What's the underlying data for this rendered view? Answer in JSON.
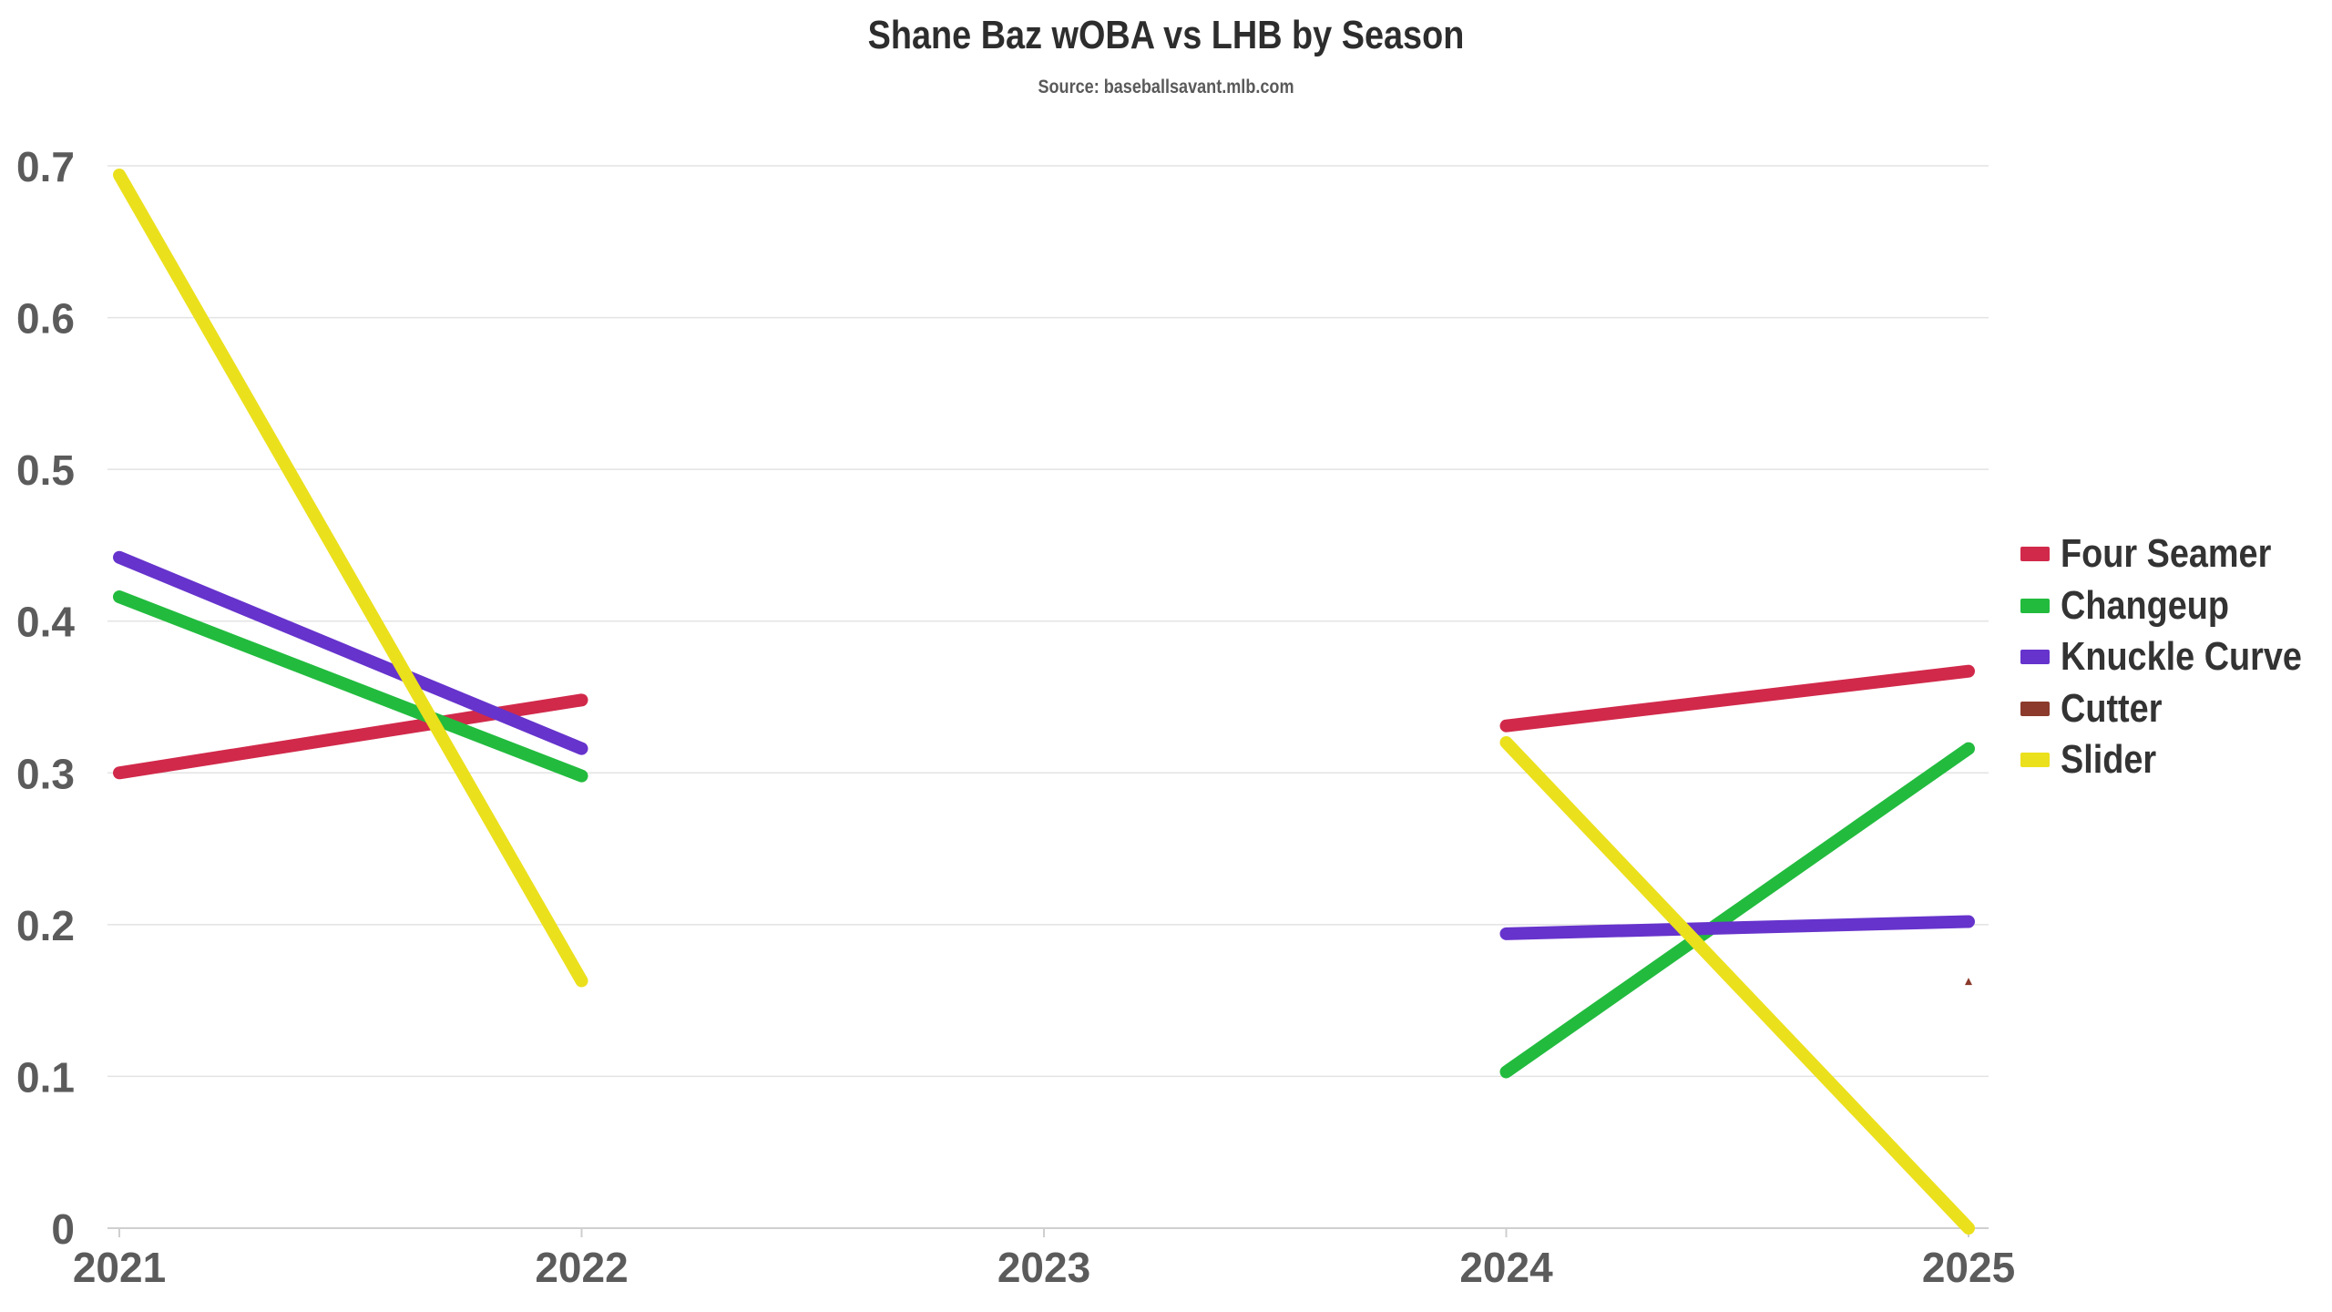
{
  "chart_data": {
    "type": "line",
    "title": "Shane Baz wOBA vs LHB by Season",
    "subtitle": "Source: baseballsavant.mlb.com",
    "xlabel": "",
    "ylabel": "",
    "categories": [
      "2021",
      "2022",
      "2023",
      "2024",
      "2025"
    ],
    "y_ticks": [
      "0",
      "0.1",
      "0.2",
      "0.3",
      "0.4",
      "0.5",
      "0.6",
      "0.7"
    ],
    "ylim": [
      0,
      0.7
    ],
    "grid": "horizontal",
    "legend_position": "right",
    "series": [
      {
        "name": "Four Seamer",
        "color": "#d1294a",
        "values": [
          0.3,
          0.348,
          null,
          0.331,
          0.367
        ]
      },
      {
        "name": "Changeup",
        "color": "#22bb3e",
        "values": [
          0.416,
          0.298,
          null,
          0.103,
          0.316
        ]
      },
      {
        "name": "Knuckle Curve",
        "color": "#6633cc",
        "values": [
          0.442,
          0.316,
          null,
          0.194,
          0.202
        ]
      },
      {
        "name": "Cutter",
        "color": "#8b3a2b",
        "values": [
          null,
          null,
          null,
          null,
          0.162
        ]
      },
      {
        "name": "Slider",
        "color": "#ebe01c",
        "values": [
          0.694,
          0.163,
          null,
          0.32,
          0.0
        ]
      }
    ]
  }
}
